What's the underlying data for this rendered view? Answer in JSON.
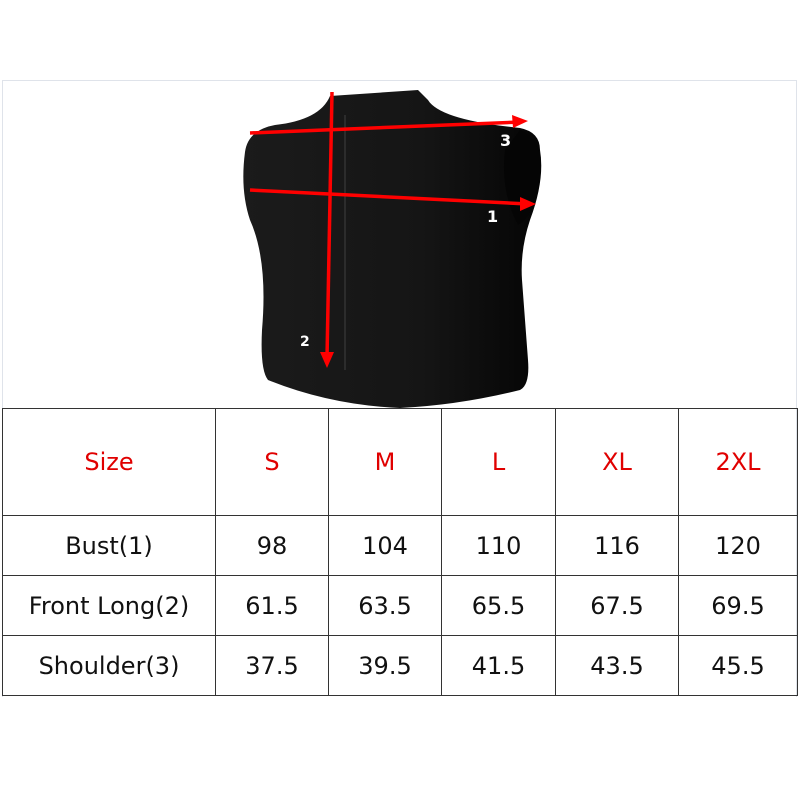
{
  "diagram": {
    "labels": [
      "1",
      "2",
      "3"
    ],
    "garment_color": "#141414",
    "arrow_color": "#ff0000"
  },
  "size_table": {
    "header_color": "#e00000",
    "columns": [
      "Size",
      "S",
      "M",
      "L",
      "XL",
      "2XL"
    ],
    "rows": [
      {
        "label": "Bust(1)",
        "values": [
          "98",
          "104",
          "110",
          "116",
          "120"
        ]
      },
      {
        "label": "Front Long(2)",
        "values": [
          "61.5",
          "63.5",
          "65.5",
          "67.5",
          "69.5"
        ]
      },
      {
        "label": "Shoulder(3)",
        "values": [
          "37.5",
          "39.5",
          "41.5",
          "43.5",
          "45.5"
        ]
      }
    ]
  }
}
